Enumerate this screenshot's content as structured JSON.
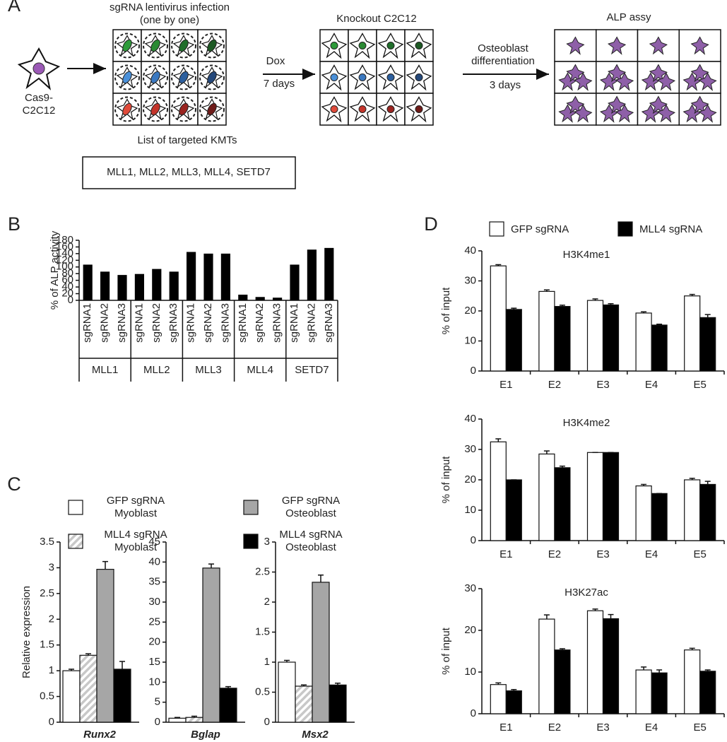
{
  "panel_a": {
    "label": "A",
    "start_cell": "Cas9-\nC2C12",
    "infection": "sgRNA lentivirus infection\n(one by one)",
    "dox": "Dox",
    "dox_days": "7 days",
    "knockout": "Knockout  C2C12",
    "differentiation": "Osteoblast\ndifferentiation",
    "diff_days": "3 days",
    "assay": "ALP assy",
    "list_title": "List of targeted  KMTs",
    "list": "MLL1, MLL2, MLL3, MLL4, SETD7"
  },
  "chart_data": [
    {
      "type": "bar",
      "panel_label": "B",
      "ylabel": "% of ALP activity",
      "categories": [
        "sgRNA1",
        "sgRNA2",
        "sgRNA3",
        "sgRNA1",
        "sgRNA2",
        "sgRNA3",
        "sgRNA1",
        "sgRNA2",
        "sgRNA3",
        "sgRNA1",
        "sgRNA2",
        "sgRNA3",
        "sgRNA1",
        "sgRNA2",
        "sgRNA3"
      ],
      "groups": [
        "MLL1",
        "MLL2",
        "MLL3",
        "MLL4",
        "SETD7"
      ],
      "values": [
        107,
        86,
        76,
        79,
        94,
        86,
        145,
        140,
        140,
        17,
        10,
        8,
        107,
        152,
        157
      ],
      "color": "#000000",
      "ylim": [
        0,
        180
      ],
      "yticks": [
        0,
        20,
        40,
        60,
        80,
        100,
        120,
        140,
        160,
        180
      ]
    },
    {
      "type": "multi_bar",
      "panel_label": "C",
      "ylabel": "Relative expression",
      "categories": [
        "Runx2",
        "Bglap",
        "Msx2"
      ],
      "series": [
        {
          "name": "GFP sgRNA\nMyoblast",
          "color": "#ffffff",
          "values": [
            1.0,
            1.0,
            1.0
          ],
          "errors": [
            0.03,
            0.2,
            0.03
          ]
        },
        {
          "name": "MLL4 sgRNA\nMyoblast",
          "color": "#c8c8c8",
          "pattern": "hatch",
          "values": [
            1.3,
            1.2,
            0.6
          ],
          "errors": [
            0.03,
            0.3,
            0.02
          ]
        },
        {
          "name": "GFP sgRNA\nOsteoblast",
          "color": "#a6a6a6",
          "values": [
            2.97,
            38.5,
            2.33
          ],
          "errors": [
            0.15,
            1.0,
            0.12
          ]
        },
        {
          "name": "MLL4 sgRNA\nOsteoblast",
          "color": "#000000",
          "values": [
            1.03,
            8.5,
            0.62
          ],
          "errors": [
            0.15,
            0.4,
            0.03
          ]
        }
      ],
      "ylims": [
        [
          0,
          3.5
        ],
        [
          0,
          45
        ],
        [
          0,
          3
        ]
      ],
      "yticks": [
        [
          0,
          0.5,
          1,
          1.5,
          2,
          2.5,
          3,
          3.5
        ],
        [
          0,
          5,
          10,
          15,
          20,
          25,
          30,
          35,
          40,
          45
        ],
        [
          0,
          0.5,
          1,
          1.5,
          2,
          2.5,
          3
        ]
      ]
    },
    {
      "type": "grouped_bar",
      "panel_label": "D",
      "ylabel": "% of input",
      "categories": [
        "E1",
        "E2",
        "E3",
        "E4",
        "E5"
      ],
      "titles": [
        "H3K4me1",
        "H3K4me2",
        "H3K27ac"
      ],
      "series": [
        {
          "name": "GFP sgRNA",
          "color": "#ffffff",
          "values": [
            [
              35,
              26.5,
              23.5,
              19.3,
              25
            ],
            [
              32.5,
              28.5,
              29,
              18,
              20
            ],
            [
              7,
              22.7,
              24.7,
              10.5,
              15.3
            ]
          ],
          "errors": [
            [
              0.4,
              0.5,
              0.5,
              0.4,
              0.5
            ],
            [
              1,
              1,
              0,
              0.5,
              0.5
            ],
            [
              0.4,
              1,
              0.4,
              0.7,
              0.4
            ]
          ]
        },
        {
          "name": "MLL4 sgRNA",
          "color": "#000000",
          "values": [
            [
              20.5,
              21.5,
              22,
              15.3,
              17.8
            ],
            [
              20,
              24,
              29,
              15.5,
              18.5
            ],
            [
              5.5,
              15.3,
              22.8,
              9.8,
              10.2
            ]
          ],
          "errors": [
            [
              0.4,
              0.4,
              0.4,
              0.3,
              1
            ],
            [
              0,
              0.5,
              0,
              0,
              1
            ],
            [
              0.3,
              0.3,
              1,
              0.7,
              0.3
            ]
          ]
        }
      ],
      "ylims": [
        [
          0,
          40
        ],
        [
          0,
          40
        ],
        [
          0,
          30
        ]
      ],
      "yticks": [
        [
          0,
          10,
          20,
          30,
          40
        ],
        [
          0,
          10,
          20,
          30,
          40
        ],
        [
          0,
          10,
          20,
          30
        ]
      ]
    }
  ]
}
